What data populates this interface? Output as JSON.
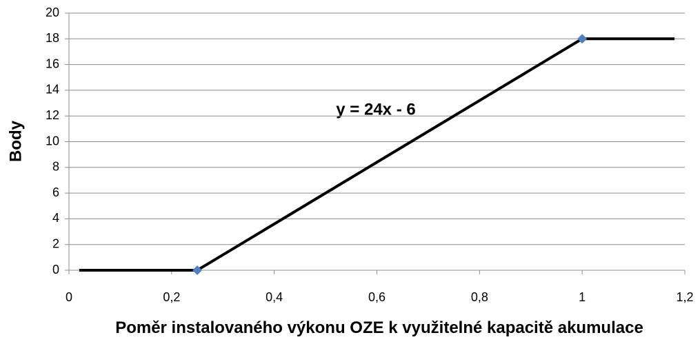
{
  "chart_data": {
    "type": "line",
    "ylabel": "Body",
    "xlabel": "Poměr instalovaného výkonu OZE k využitelné kapacitě akumulace",
    "annotation": "y = 24x - 6",
    "xlim": [
      0,
      1.2
    ],
    "xticks": [
      0,
      {
        "value": 0.2,
        "label": "0,2"
      },
      {
        "value": 0.4,
        "label": "0,4"
      },
      {
        "value": 0.6,
        "label": "0,6"
      },
      {
        "value": 0.8,
        "label": "0,8"
      },
      1,
      {
        "value": 1.2,
        "label": "1,2"
      }
    ],
    "ylim": [
      0,
      20
    ],
    "yticks": [
      0,
      2,
      4,
      6,
      8,
      10,
      12,
      14,
      16,
      18,
      20
    ],
    "grid": true,
    "series": [
      {
        "color": "#000000",
        "x": [
          0.02,
          0.25,
          1,
          1.18
        ],
        "values": [
          0,
          0,
          18,
          18
        ]
      },
      {
        "color": "#4f81bd",
        "marker": "diamond",
        "x": [
          0.25,
          1
        ],
        "values": [
          0,
          18
        ]
      }
    ]
  }
}
